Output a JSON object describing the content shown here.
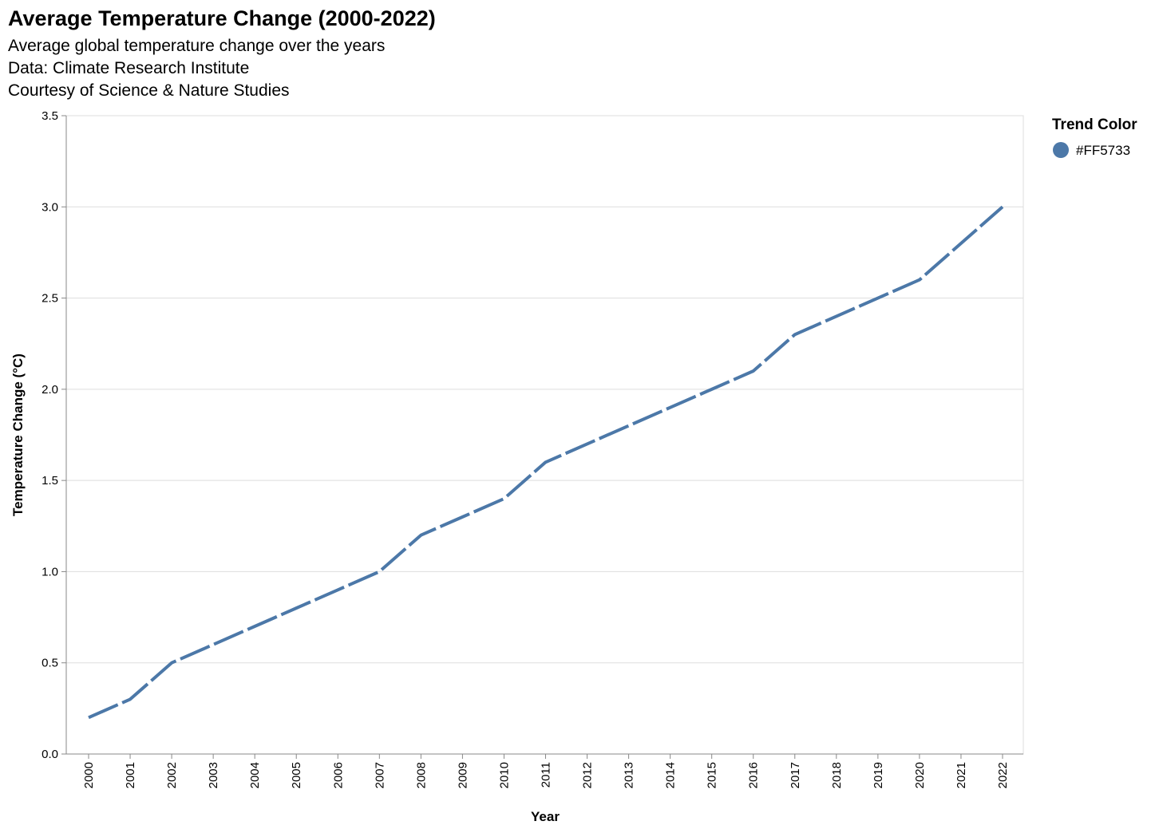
{
  "header": {
    "title": "Average Temperature Change (2000-2022)",
    "subtitle_lines": [
      "Average global temperature change over the years",
      "Data: Climate Research Institute",
      "Courtesy of Science & Nature Studies"
    ]
  },
  "legend": {
    "title": "Trend Color",
    "label": "#FF5733",
    "swatch_color": "#4C78A8"
  },
  "chart_data": {
    "type": "line",
    "title": "Average Temperature Change (2000-2022)",
    "xlabel": "Year",
    "ylabel": "Temperature Change (°C)",
    "x": [
      2000,
      2001,
      2002,
      2003,
      2004,
      2005,
      2006,
      2007,
      2008,
      2009,
      2010,
      2011,
      2012,
      2013,
      2014,
      2015,
      2016,
      2017,
      2018,
      2019,
      2020,
      2021,
      2022
    ],
    "series": [
      {
        "name": "#FF5733",
        "values": [
          0.2,
          0.3,
          0.5,
          0.6,
          0.7,
          0.8,
          0.9,
          1.0,
          1.2,
          1.3,
          1.4,
          1.6,
          1.7,
          1.8,
          1.9,
          2.0,
          2.1,
          2.3,
          2.4,
          2.5,
          2.6,
          2.8,
          3.0
        ],
        "color": "#4C78A8",
        "dashed": true
      }
    ],
    "ylim": [
      0,
      3.5
    ],
    "yticks": [
      0.0,
      0.5,
      1.0,
      1.5,
      2.0,
      2.5,
      3.0,
      3.5
    ],
    "ytick_labels": [
      "0.0",
      "0.5",
      "1.0",
      "1.5",
      "2.0",
      "2.5",
      "3.0",
      "3.5"
    ],
    "grid": true,
    "legend_position": "top-right",
    "line_color": "#4C78A8"
  }
}
